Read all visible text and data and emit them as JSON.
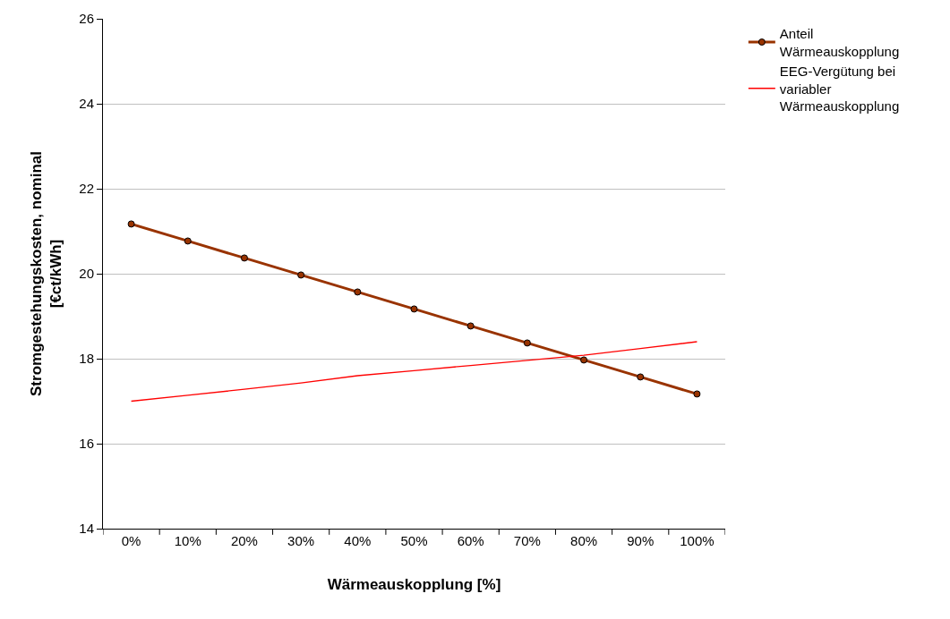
{
  "chart_data": {
    "type": "line",
    "xlabel": "Wärmeauskopplung [%]",
    "ylabel": "Stromgestehungskosten, nominal [€ct/kWh]",
    "categories": [
      "0%",
      "10%",
      "20%",
      "30%",
      "40%",
      "50%",
      "60%",
      "70%",
      "80%",
      "90%",
      "100%"
    ],
    "series": [
      {
        "name": "Anteil Wärmeauskopplung",
        "color": "#993300",
        "marker": "circle",
        "values": [
          21.17,
          20.77,
          20.37,
          19.97,
          19.57,
          19.17,
          18.77,
          18.37,
          17.97,
          17.57,
          17.17
        ]
      },
      {
        "name": "EEG-Vergütung bei variabler Wärmeauskopplung",
        "color": "#ff0000",
        "marker": "none",
        "values": [
          17.0,
          17.14,
          17.28,
          17.43,
          17.6,
          17.72,
          17.84,
          17.96,
          18.08,
          18.24,
          18.4
        ]
      }
    ],
    "ylim": [
      14,
      26
    ],
    "yticks": [
      14,
      16,
      18,
      20,
      22,
      24,
      26
    ],
    "grid": "y",
    "legend": "right"
  }
}
